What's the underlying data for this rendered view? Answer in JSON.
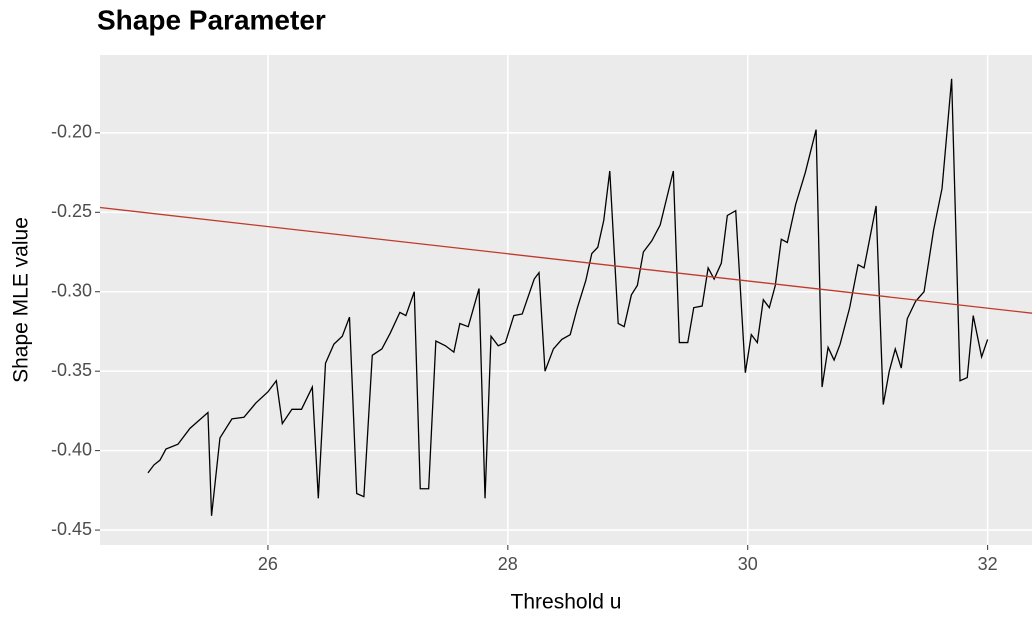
{
  "chart_data": {
    "type": "line",
    "title": "Shape Parameter",
    "x_label": "Threshold u",
    "y_label": "Shape MLE value",
    "xlim": [
      24.6,
      32.37
    ],
    "ylim": [
      -0.4594,
      -0.151
    ],
    "xticks": [
      26,
      28,
      30,
      32
    ],
    "yticks": [
      {
        "value": -0.45,
        "label": "-0.45"
      },
      {
        "value": -0.4,
        "label": "-0.40"
      },
      {
        "value": -0.35,
        "label": "-0.35"
      },
      {
        "value": -0.3,
        "label": "-0.30"
      },
      {
        "value": -0.25,
        "label": "-0.25"
      },
      {
        "value": -0.2,
        "label": "-0.20"
      }
    ],
    "grid": true,
    "background": "#ebebeb",
    "series": [
      {
        "color": "#000000",
        "x": [
          25.0,
          25.05,
          25.1,
          25.15,
          25.25,
          25.35,
          25.5,
          25.53,
          25.6,
          25.7,
          25.8,
          25.9,
          26.0,
          26.07,
          26.12,
          26.2,
          26.28,
          26.37,
          26.42,
          26.48,
          26.55,
          26.62,
          26.68,
          26.74,
          26.8,
          26.87,
          26.95,
          27.02,
          27.1,
          27.15,
          27.22,
          27.27,
          27.34,
          27.4,
          27.48,
          27.55,
          27.6,
          27.67,
          27.76,
          27.81,
          27.86,
          27.92,
          27.98,
          28.05,
          28.12,
          28.22,
          28.26,
          28.31,
          28.38,
          28.45,
          28.52,
          28.58,
          28.65,
          28.7,
          28.75,
          28.8,
          28.85,
          28.92,
          28.97,
          29.03,
          29.08,
          29.13,
          29.2,
          29.27,
          29.38,
          29.43,
          29.5,
          29.55,
          29.62,
          29.67,
          29.72,
          29.78,
          29.83,
          29.9,
          29.98,
          30.03,
          30.08,
          30.13,
          30.18,
          30.23,
          30.28,
          30.33,
          30.4,
          30.48,
          30.57,
          30.62,
          30.67,
          30.72,
          30.77,
          30.85,
          30.92,
          30.97,
          31.07,
          31.13,
          31.18,
          31.23,
          31.28,
          31.33,
          31.4,
          31.47,
          31.55,
          31.62,
          31.7,
          31.77,
          31.83,
          31.88,
          31.95,
          32.0
        ],
        "values": [
          -0.414,
          -0.409,
          -0.406,
          -0.399,
          -0.396,
          -0.386,
          -0.376,
          -0.441,
          -0.392,
          -0.38,
          -0.379,
          -0.37,
          -0.363,
          -0.356,
          -0.383,
          -0.374,
          -0.374,
          -0.36,
          -0.43,
          -0.345,
          -0.333,
          -0.328,
          -0.316,
          -0.427,
          -0.429,
          -0.34,
          -0.336,
          -0.326,
          -0.313,
          -0.315,
          -0.3,
          -0.424,
          -0.424,
          -0.331,
          -0.334,
          -0.338,
          -0.32,
          -0.322,
          -0.298,
          -0.43,
          -0.328,
          -0.334,
          -0.332,
          -0.315,
          -0.314,
          -0.292,
          -0.288,
          -0.35,
          -0.336,
          -0.33,
          -0.327,
          -0.31,
          -0.293,
          -0.276,
          -0.272,
          -0.255,
          -0.224,
          -0.32,
          -0.322,
          -0.302,
          -0.296,
          -0.275,
          -0.268,
          -0.258,
          -0.224,
          -0.332,
          -0.332,
          -0.31,
          -0.309,
          -0.285,
          -0.292,
          -0.282,
          -0.252,
          -0.249,
          -0.351,
          -0.327,
          -0.332,
          -0.305,
          -0.31,
          -0.296,
          -0.267,
          -0.269,
          -0.245,
          -0.225,
          -0.198,
          -0.36,
          -0.335,
          -0.343,
          -0.333,
          -0.31,
          -0.283,
          -0.285,
          -0.246,
          -0.371,
          -0.35,
          -0.336,
          -0.348,
          -0.317,
          -0.306,
          -0.3,
          -0.261,
          -0.235,
          -0.166,
          -0.356,
          -0.354,
          -0.315,
          -0.341,
          -0.33
        ]
      },
      {
        "color": "#c0392b",
        "x": [
          24.6,
          32.37
        ],
        "values": [
          -0.247,
          -0.3135
        ]
      }
    ]
  }
}
